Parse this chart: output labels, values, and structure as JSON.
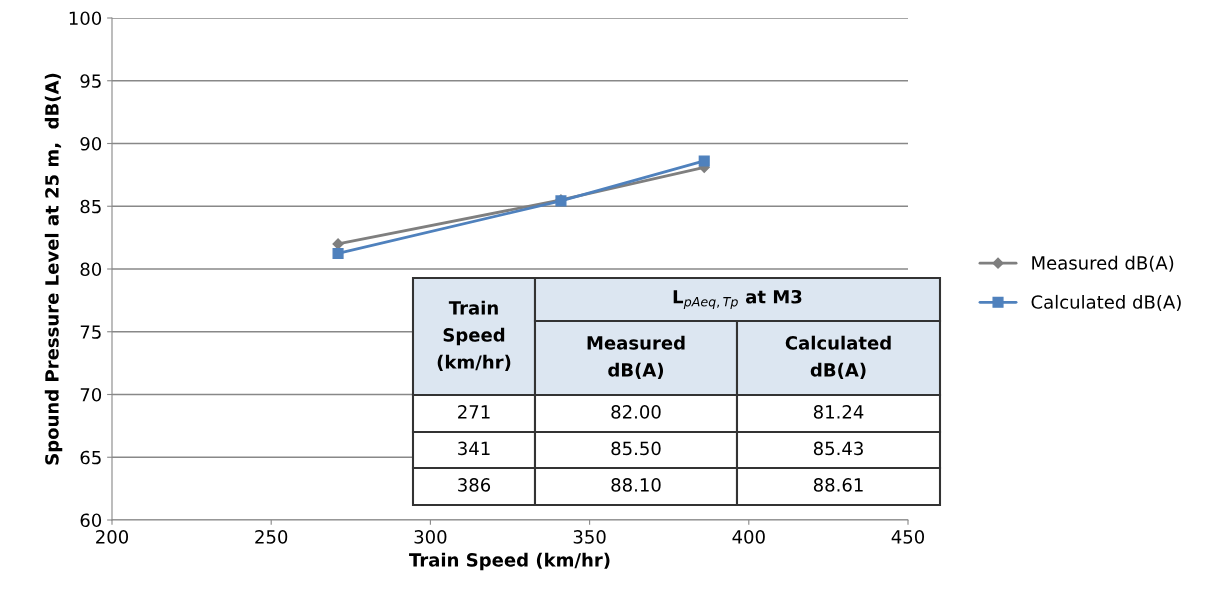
{
  "chart_data": {
    "type": "line",
    "xlabel": "Train Speed (km/hr)",
    "ylabel": "Spound Pressure Level at 25 m,  dB(A)",
    "x": [
      271,
      341,
      386
    ],
    "xlim": [
      200,
      450
    ],
    "xticks": [
      200,
      250,
      300,
      350,
      400,
      450
    ],
    "ylim": [
      60,
      100
    ],
    "yticks": [
      60,
      65,
      70,
      75,
      80,
      85,
      90,
      95,
      100
    ],
    "grid": "y",
    "legend": "right",
    "series": [
      {
        "name": "Measured dB(A)",
        "color": "#7f7f7f",
        "marker": "diamond",
        "values": [
          82.0,
          85.5,
          88.1
        ]
      },
      {
        "name": "Calculated dB(A)",
        "color": "#4f81bd",
        "marker": "square",
        "values": [
          81.24,
          85.43,
          88.61
        ]
      }
    ],
    "annotations": [
      "Train\nSpeed\n(km/hr)",
      "L$_{pAeq,Tp}$ at M3",
      "Measured\ndB(A)",
      "Calculated\ndB(A)",
      "271",
      "82.00",
      "81.24",
      "341",
      "85.50",
      "85.43",
      "386",
      "88.10",
      "88.61"
    ]
  }
}
